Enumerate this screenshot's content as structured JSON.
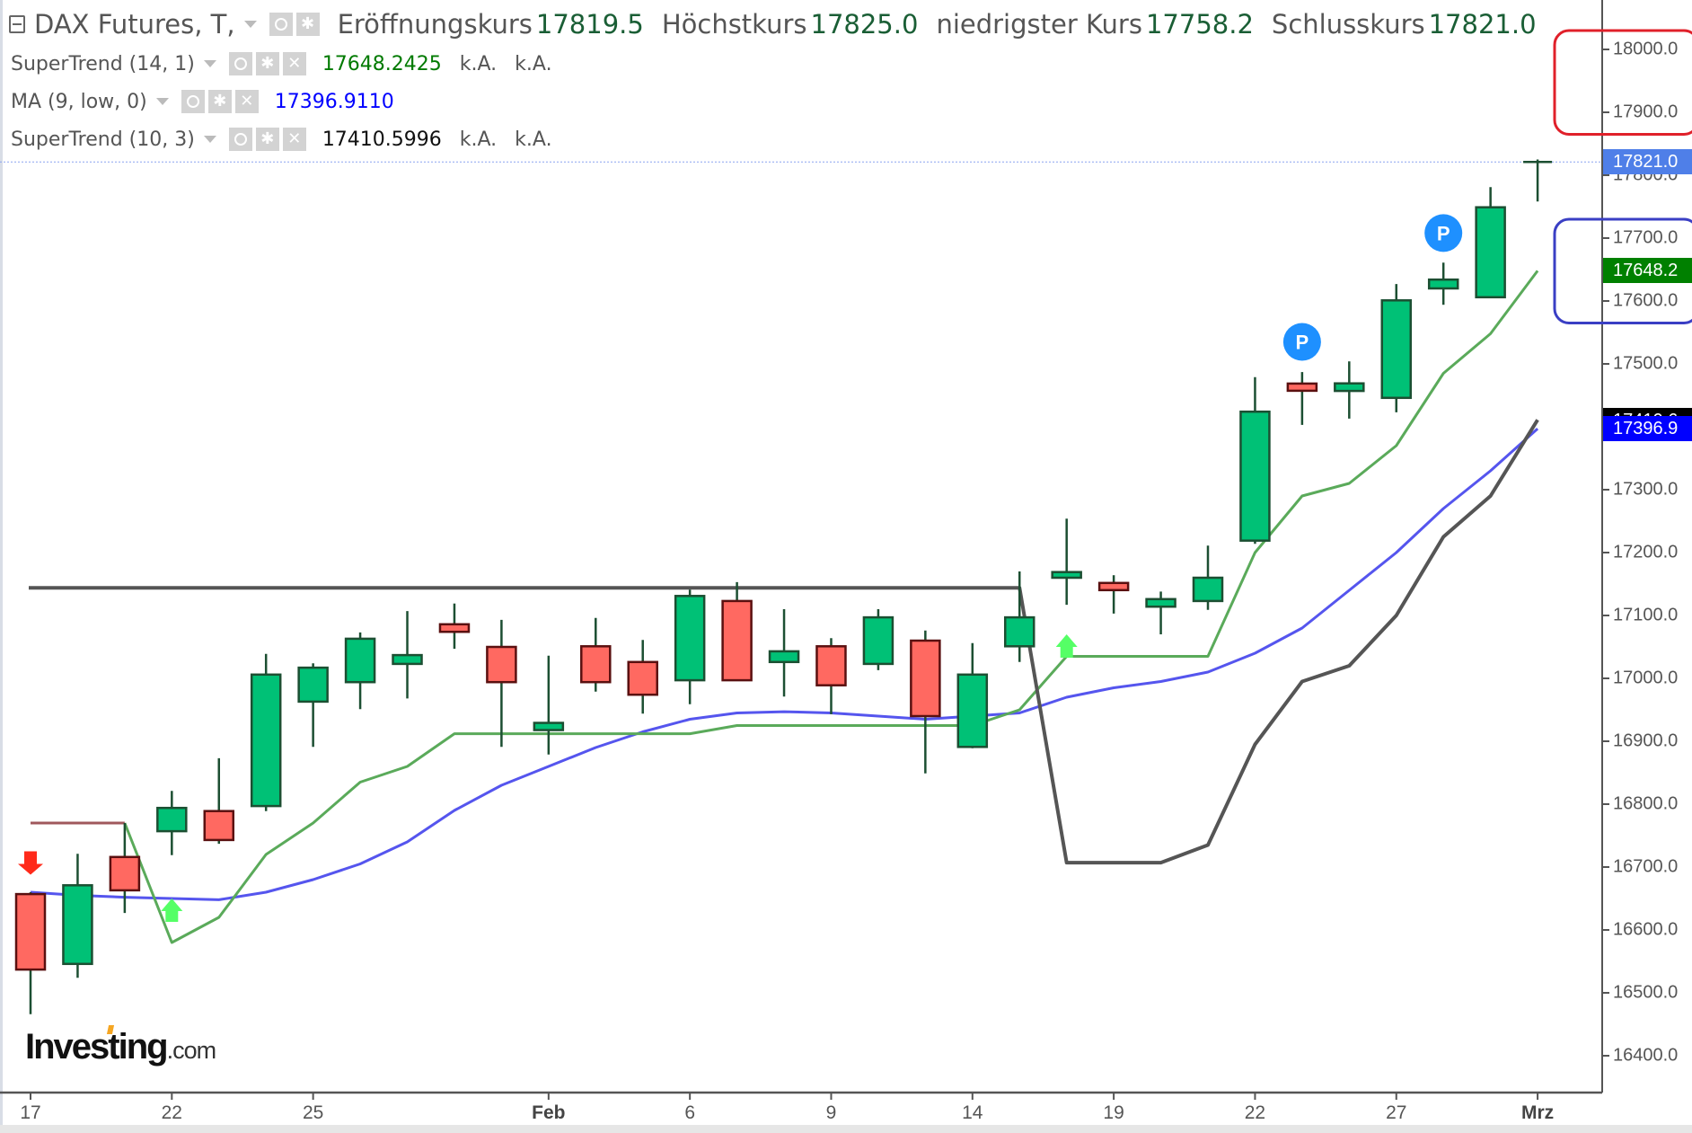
{
  "header": {
    "symbol": "DAX Futures, T,",
    "fields": [
      {
        "label": "Eröffnungskurs",
        "value": "17819.5"
      },
      {
        "label": "Höchstkurs",
        "value": "17825.0"
      },
      {
        "label": "niedrigster Kurs",
        "value": "17758.2"
      },
      {
        "label": "Schlusskurs",
        "value": "17821.0"
      }
    ]
  },
  "indicators": [
    {
      "name": "SuperTrend (14, 1)",
      "value": "17648.2425",
      "value_color": "#007a00",
      "extra": [
        "k.A.",
        "k.A."
      ]
    },
    {
      "name": "MA (9, low, 0)",
      "value": "17396.9110",
      "value_color": "#0000ff",
      "extra": []
    },
    {
      "name": "SuperTrend (10, 3)",
      "value": "17410.5996",
      "value_color": "#111111",
      "extra": [
        "k.A.",
        "k.A."
      ]
    }
  ],
  "logo": {
    "brand": "Investing",
    "suffix": ".com"
  },
  "price_badges": [
    {
      "value": "17821.0",
      "price": 17821.0,
      "bg": "#4f7fe8"
    },
    {
      "value": "17648.2",
      "price": 17648.2,
      "bg": "#008000"
    },
    {
      "value": "17410.6",
      "price": 17410.6,
      "bg": "#000000"
    },
    {
      "value": "17396.9",
      "price": 17396.9,
      "bg": "#0000ff"
    }
  ],
  "annotations": [
    {
      "type": "rounded-rect",
      "color": "#e0202a",
      "price_top": 18030,
      "price_bottom": 17865
    },
    {
      "type": "rounded-rect",
      "color": "#3a3fc4",
      "price_top": 17730,
      "price_bottom": 17565
    }
  ],
  "chart_data": {
    "type": "candlestick",
    "title": "DAX Futures, T",
    "xlabel": "",
    "ylabel": "",
    "ylim": [
      16320,
      18080
    ],
    "y_ticks": [
      18000,
      17900,
      17800,
      17700,
      17600,
      17500,
      17400,
      17300,
      17200,
      17100,
      17000,
      16900,
      16800,
      16700,
      16600,
      16500,
      16400
    ],
    "y_tick_labels": [
      "18000.0",
      "17900.0",
      "17800.0",
      "17700.0",
      "17600.0",
      "17500.0",
      "17400.0",
      "17300.0",
      "17200.0",
      "17100.0",
      "17000.0",
      "16900.0",
      "16800.0",
      "16700.0",
      "16600.0",
      "16500.0",
      "16400.0"
    ],
    "x_ticks": [
      {
        "index": 0,
        "label": "17",
        "bold": false
      },
      {
        "index": 3,
        "label": "22",
        "bold": false
      },
      {
        "index": 6,
        "label": "25",
        "bold": false
      },
      {
        "index": 11,
        "label": "Feb",
        "bold": true
      },
      {
        "index": 14,
        "label": "6",
        "bold": false
      },
      {
        "index": 17,
        "label": "9",
        "bold": false
      },
      {
        "index": 20,
        "label": "14",
        "bold": false
      },
      {
        "index": 23,
        "label": "19",
        "bold": false
      },
      {
        "index": 26,
        "label": "22",
        "bold": false
      },
      {
        "index": 29,
        "label": "27",
        "bold": false
      },
      {
        "index": 32,
        "label": "Mrz",
        "bold": true
      }
    ],
    "dates": [
      "Jan 17",
      "Jan 18",
      "Jan 19",
      "Jan 22",
      "Jan 23",
      "Jan 24",
      "Jan 25",
      "Jan 26",
      "Jan 29",
      "Jan 30",
      "Jan 31",
      "Feb 1",
      "Feb 2",
      "Feb 5",
      "Feb 6",
      "Feb 7",
      "Feb 8",
      "Feb 9",
      "Feb 12",
      "Feb 13",
      "Feb 14",
      "Feb 15",
      "Feb 16",
      "Feb 19",
      "Feb 20",
      "Feb 21",
      "Feb 22",
      "Feb 23",
      "Feb 26",
      "Feb 27",
      "Feb 28",
      "Feb 29",
      "Mar 1"
    ],
    "ohlc": [
      [
        16657,
        16660,
        16466,
        16537
      ],
      [
        16546,
        16721,
        16524,
        16671
      ],
      [
        16716,
        16770,
        16627,
        16663
      ],
      [
        16757,
        16821,
        16719,
        16794
      ],
      [
        16789,
        16873,
        16737,
        16743
      ],
      [
        16797,
        17039,
        16789,
        17006
      ],
      [
        16963,
        17024,
        16891,
        17017
      ],
      [
        16994,
        17073,
        16951,
        17063
      ],
      [
        17023,
        17107,
        16968,
        17037
      ],
      [
        17086,
        17119,
        17047,
        17074
      ],
      [
        17050,
        17093,
        16891,
        16994
      ],
      [
        16923,
        17036,
        16879,
        16924
      ],
      [
        17051,
        17096,
        16979,
        16994
      ],
      [
        17026,
        17061,
        16944,
        16974
      ],
      [
        16997,
        17141,
        16959,
        17131
      ],
      [
        17123,
        17153,
        16997,
        16997
      ],
      [
        17026,
        17110,
        16971,
        17043
      ],
      [
        17051,
        17064,
        16943,
        16989
      ],
      [
        17023,
        17110,
        17013,
        17097
      ],
      [
        17060,
        17076,
        16849,
        16940
      ],
      [
        16891,
        17056,
        16889,
        17006
      ],
      [
        17051,
        17170,
        17026,
        17097
      ],
      [
        17160,
        17254,
        17117,
        17169
      ],
      [
        17149,
        17164,
        17103,
        17143
      ],
      [
        17114,
        17138,
        17070,
        17126
      ],
      [
        17123,
        17211,
        17109,
        17160
      ],
      [
        17219,
        17479,
        17214,
        17424
      ],
      [
        17466,
        17487,
        17403,
        17460
      ],
      [
        17457,
        17504,
        17413,
        17469
      ],
      [
        17446,
        17627,
        17423,
        17601
      ],
      [
        17620,
        17661,
        17594,
        17634
      ],
      [
        17606,
        17781,
        17606,
        17749
      ],
      [
        17819.5,
        17825.0,
        17758.2,
        17821.0
      ]
    ],
    "series": [
      {
        "name": "MA (9, low, 0)",
        "color": "#5555ee",
        "values": [
          16660,
          16655,
          16652,
          16650,
          16648,
          16660,
          16680,
          16705,
          16740,
          16790,
          16830,
          16860,
          16890,
          16915,
          16935,
          16945,
          16947,
          16945,
          16940,
          16935,
          16940,
          16945,
          16970,
          16985,
          16995,
          17010,
          17040,
          17080,
          17140,
          17200,
          17270,
          17330,
          17397
        ]
      },
      {
        "name": "SuperTrend (14, 1) down",
        "color": "#a0585c",
        "values": [
          16770,
          16770,
          16770,
          null,
          null,
          null,
          null,
          null,
          null,
          null,
          null,
          null,
          null,
          null,
          null,
          null,
          null,
          null,
          null,
          null,
          null,
          null,
          null,
          null,
          null,
          null,
          null,
          null,
          null,
          null,
          null,
          null,
          null
        ]
      },
      {
        "name": "SuperTrend (14, 1)",
        "color": "#5aaa5a",
        "values": [
          null,
          null,
          16770,
          16580,
          16620,
          16720,
          16770,
          16835,
          16860,
          16912,
          16912,
          16912,
          16912,
          16912,
          16912,
          16925,
          16925,
          16925,
          16925,
          16925,
          16925,
          16950,
          17035,
          17035,
          17035,
          17035,
          17200,
          17290,
          17310,
          17370,
          17485,
          17548,
          17648
        ]
      },
      {
        "name": "SuperTrend (10, 3)",
        "color": "#555555",
        "values": [
          17144,
          17144,
          17144,
          17144,
          17144,
          17144,
          17144,
          17144,
          17144,
          17144,
          17144,
          17144,
          17144,
          17144,
          17144,
          17144,
          17144,
          17144,
          17144,
          17144,
          17144,
          17144,
          16707,
          16707,
          16707,
          16735,
          16895,
          16995,
          17020,
          17100,
          17225,
          17290,
          17411
        ]
      }
    ],
    "signals": [
      {
        "index": 0,
        "type": "sell-arrow",
        "price": 16705,
        "color": "#ff2a1a"
      },
      {
        "index": 3,
        "type": "buy-arrow",
        "price": 16630,
        "color": "#55ff66"
      },
      {
        "index": 22,
        "type": "buy-arrow",
        "price": 17050,
        "color": "#55ff66"
      },
      {
        "index": 27,
        "type": "pivot",
        "label": "P",
        "price": 17535,
        "color": "#1e90ff"
      },
      {
        "index": 30,
        "type": "pivot",
        "label": "P",
        "price": 17708,
        "color": "#1e90ff"
      }
    ],
    "current_price_line": 17821.0,
    "legend_position": "top-left",
    "grid": false
  }
}
